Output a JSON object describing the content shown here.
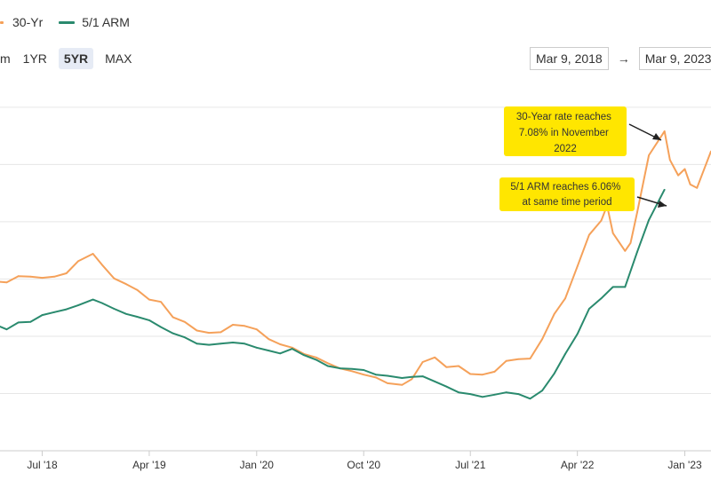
{
  "legend": {
    "items": [
      {
        "label": "30-Yr",
        "color": "#f5a15a"
      },
      {
        "label": "5/1 ARM",
        "color": "#2a8a6e"
      }
    ]
  },
  "range_selector": {
    "fragment": "m",
    "buttons": [
      {
        "label": "1YR",
        "active": false
      },
      {
        "label": "5YR",
        "active": true
      },
      {
        "label": "MAX",
        "active": false
      }
    ]
  },
  "date_range": {
    "start": "Mar 9, 2018",
    "arrow": "→",
    "end": "Mar 9, 2023"
  },
  "annotations": [
    {
      "lines": [
        "30-Year rate reaches",
        "7.08% in November",
        "2022"
      ]
    },
    {
      "lines": [
        "5/1 ARM reaches 6.06%",
        "at same time period"
      ]
    }
  ],
  "chart_data": {
    "type": "line",
    "x_tick_labels": [
      "Jul '18",
      "Apr '19",
      "Jan '20",
      "Oct '20",
      "Jul '21",
      "Apr '22",
      "Jan '23"
    ],
    "x_ticks": [
      "2018-07-01",
      "2019-04-01",
      "2020-01-01",
      "2020-10-01",
      "2021-07-01",
      "2022-04-01",
      "2023-01-01"
    ],
    "x_range": [
      "2018-03-15",
      "2023-03-09"
    ],
    "y_range": [
      1.5,
      7.9
    ],
    "y_gridlines": [
      2.5,
      3.5,
      4.5,
      5.5,
      6.5,
      7.5
    ],
    "grid": true,
    "legend_position": "top-left",
    "series": [
      {
        "name": "30-Yr",
        "color": "#f5a15a",
        "points": [
          [
            "2018-03-15",
            4.45
          ],
          [
            "2018-04-01",
            4.44
          ],
          [
            "2018-05-01",
            4.55
          ],
          [
            "2018-06-01",
            4.54
          ],
          [
            "2018-07-01",
            4.52
          ],
          [
            "2018-08-01",
            4.54
          ],
          [
            "2018-09-01",
            4.6
          ],
          [
            "2018-10-01",
            4.81
          ],
          [
            "2018-11-08",
            4.94
          ],
          [
            "2018-12-01",
            4.75
          ],
          [
            "2019-01-01",
            4.51
          ],
          [
            "2019-02-01",
            4.41
          ],
          [
            "2019-03-01",
            4.31
          ],
          [
            "2019-04-01",
            4.14
          ],
          [
            "2019-05-01",
            4.1
          ],
          [
            "2019-06-01",
            3.83
          ],
          [
            "2019-07-01",
            3.75
          ],
          [
            "2019-08-01",
            3.6
          ],
          [
            "2019-09-01",
            3.56
          ],
          [
            "2019-10-01",
            3.57
          ],
          [
            "2019-11-01",
            3.7
          ],
          [
            "2019-12-01",
            3.68
          ],
          [
            "2020-01-01",
            3.62
          ],
          [
            "2020-02-01",
            3.45
          ],
          [
            "2020-03-01",
            3.36
          ],
          [
            "2020-04-01",
            3.3
          ],
          [
            "2020-05-01",
            3.19
          ],
          [
            "2020-06-01",
            3.13
          ],
          [
            "2020-07-01",
            3.03
          ],
          [
            "2020-08-01",
            2.94
          ],
          [
            "2020-09-01",
            2.89
          ],
          [
            "2020-10-01",
            2.83
          ],
          [
            "2020-11-01",
            2.78
          ],
          [
            "2020-12-01",
            2.68
          ],
          [
            "2021-01-07",
            2.65
          ],
          [
            "2021-02-01",
            2.75
          ],
          [
            "2021-03-01",
            3.05
          ],
          [
            "2021-04-01",
            3.13
          ],
          [
            "2021-05-01",
            2.96
          ],
          [
            "2021-06-01",
            2.98
          ],
          [
            "2021-07-01",
            2.84
          ],
          [
            "2021-08-01",
            2.83
          ],
          [
            "2021-09-01",
            2.88
          ],
          [
            "2021-10-01",
            3.07
          ],
          [
            "2021-11-01",
            3.1
          ],
          [
            "2021-12-01",
            3.11
          ],
          [
            "2022-01-01",
            3.45
          ],
          [
            "2022-02-01",
            3.89
          ],
          [
            "2022-03-01",
            4.16
          ],
          [
            "2022-04-01",
            4.72
          ],
          [
            "2022-05-01",
            5.27
          ],
          [
            "2022-06-01",
            5.52
          ],
          [
            "2022-06-16",
            5.78
          ],
          [
            "2022-07-01",
            5.3
          ],
          [
            "2022-08-01",
            4.99
          ],
          [
            "2022-08-15",
            5.13
          ],
          [
            "2022-09-01",
            5.66
          ],
          [
            "2022-10-01",
            6.66
          ],
          [
            "2022-11-10",
            7.08
          ],
          [
            "2022-11-24",
            6.58
          ],
          [
            "2022-12-01",
            6.49
          ],
          [
            "2022-12-15",
            6.31
          ],
          [
            "2023-01-01",
            6.42
          ],
          [
            "2023-01-15",
            6.15
          ],
          [
            "2023-02-01",
            6.09
          ],
          [
            "2023-03-09",
            6.73
          ]
        ]
      },
      {
        "name": "5/1 ARM",
        "color": "#2a8a6e",
        "points": [
          [
            "2018-03-15",
            3.67
          ],
          [
            "2018-04-01",
            3.62
          ],
          [
            "2018-05-01",
            3.74
          ],
          [
            "2018-06-01",
            3.75
          ],
          [
            "2018-07-01",
            3.87
          ],
          [
            "2018-08-01",
            3.92
          ],
          [
            "2018-09-01",
            3.97
          ],
          [
            "2018-10-01",
            4.04
          ],
          [
            "2018-11-08",
            4.14
          ],
          [
            "2018-12-01",
            4.08
          ],
          [
            "2019-01-01",
            3.98
          ],
          [
            "2019-02-01",
            3.89
          ],
          [
            "2019-03-01",
            3.84
          ],
          [
            "2019-04-01",
            3.78
          ],
          [
            "2019-05-01",
            3.66
          ],
          [
            "2019-06-01",
            3.55
          ],
          [
            "2019-07-01",
            3.48
          ],
          [
            "2019-08-01",
            3.37
          ],
          [
            "2019-09-01",
            3.35
          ],
          [
            "2019-10-01",
            3.37
          ],
          [
            "2019-11-01",
            3.39
          ],
          [
            "2019-12-01",
            3.37
          ],
          [
            "2020-01-01",
            3.3
          ],
          [
            "2020-02-01",
            3.25
          ],
          [
            "2020-03-01",
            3.2
          ],
          [
            "2020-04-01",
            3.28
          ],
          [
            "2020-05-01",
            3.17
          ],
          [
            "2020-06-01",
            3.09
          ],
          [
            "2020-07-01",
            2.98
          ],
          [
            "2020-08-01",
            2.94
          ],
          [
            "2020-09-01",
            2.93
          ],
          [
            "2020-10-01",
            2.91
          ],
          [
            "2020-11-01",
            2.83
          ],
          [
            "2020-12-01",
            2.81
          ],
          [
            "2021-01-07",
            2.77
          ],
          [
            "2021-02-01",
            2.79
          ],
          [
            "2021-03-01",
            2.8
          ],
          [
            "2021-04-01",
            2.71
          ],
          [
            "2021-05-01",
            2.62
          ],
          [
            "2021-06-01",
            2.52
          ],
          [
            "2021-07-01",
            2.49
          ],
          [
            "2021-08-01",
            2.44
          ],
          [
            "2021-09-01",
            2.48
          ],
          [
            "2021-10-01",
            2.52
          ],
          [
            "2021-11-01",
            2.49
          ],
          [
            "2021-12-01",
            2.41
          ],
          [
            "2022-01-01",
            2.55
          ],
          [
            "2022-02-01",
            2.85
          ],
          [
            "2022-03-01",
            3.19
          ],
          [
            "2022-04-01",
            3.54
          ],
          [
            "2022-05-01",
            3.98
          ],
          [
            "2022-06-01",
            4.16
          ],
          [
            "2022-07-01",
            4.36
          ],
          [
            "2022-08-01",
            4.36
          ],
          [
            "2022-09-01",
            4.97
          ],
          [
            "2022-10-01",
            5.53
          ],
          [
            "2022-11-10",
            6.06
          ]
        ]
      }
    ]
  }
}
